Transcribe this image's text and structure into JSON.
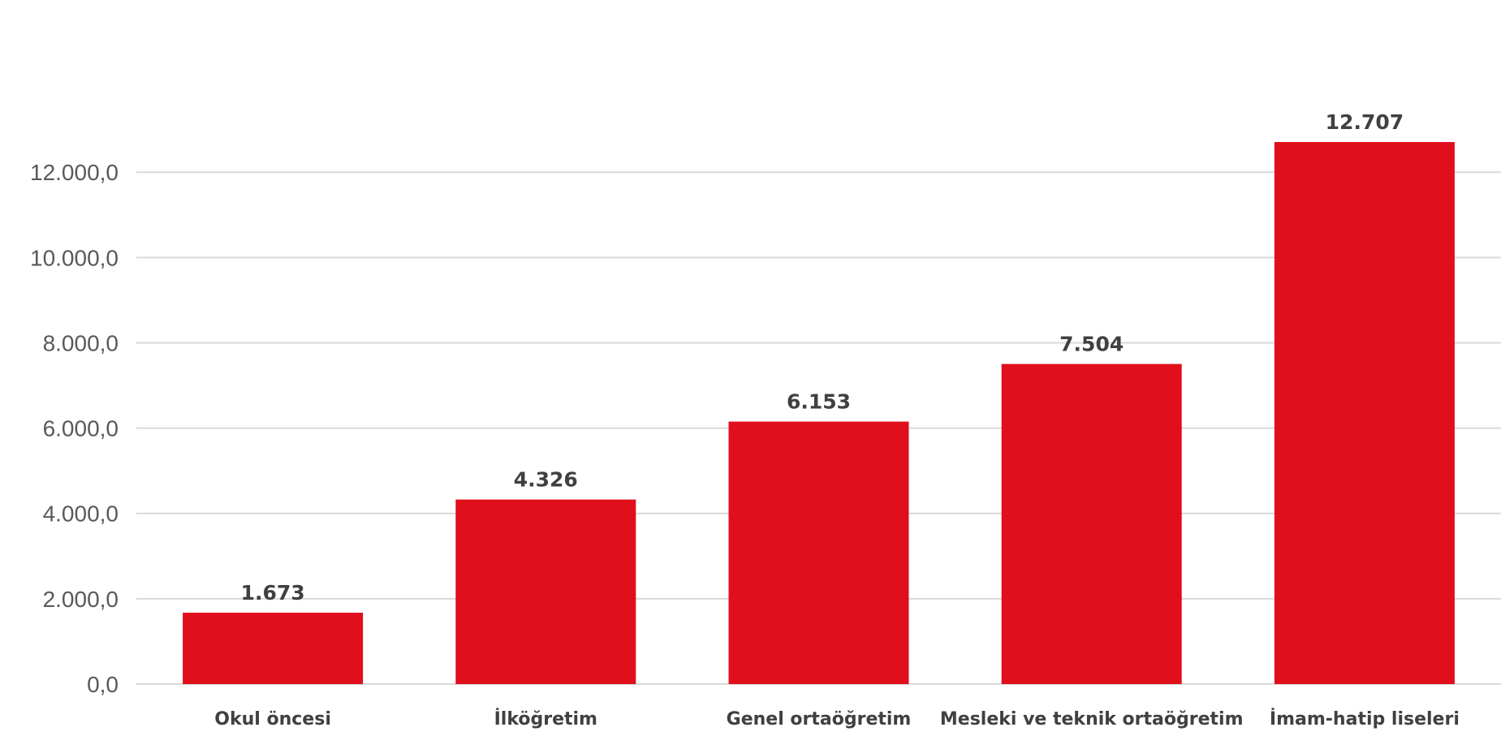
{
  "chart_data": {
    "type": "bar",
    "title": "",
    "xlabel": "",
    "ylabel": "",
    "categories": [
      "Okul öncesi",
      "İlköğretim",
      "Genel ortaöğretim",
      "Mesleki ve teknik ortaöğretim",
      "İmam-hatip liseleri"
    ],
    "values": [
      1673,
      4326,
      6153,
      7504,
      12707
    ],
    "data_labels": [
      "1.673",
      "4.326",
      "6.153",
      "7.504",
      "12.707"
    ],
    "ylim": [
      0,
      12000
    ],
    "yticks": [
      0,
      2000,
      4000,
      6000,
      8000,
      10000,
      12000
    ],
    "ytick_labels": [
      "0,0",
      "2.000,0",
      "4.000,0",
      "6.000,0",
      "8.000,0",
      "10.000,0",
      "12.000,0"
    ],
    "grid": true,
    "legend": "none",
    "bar_color": "#e10e1b"
  }
}
